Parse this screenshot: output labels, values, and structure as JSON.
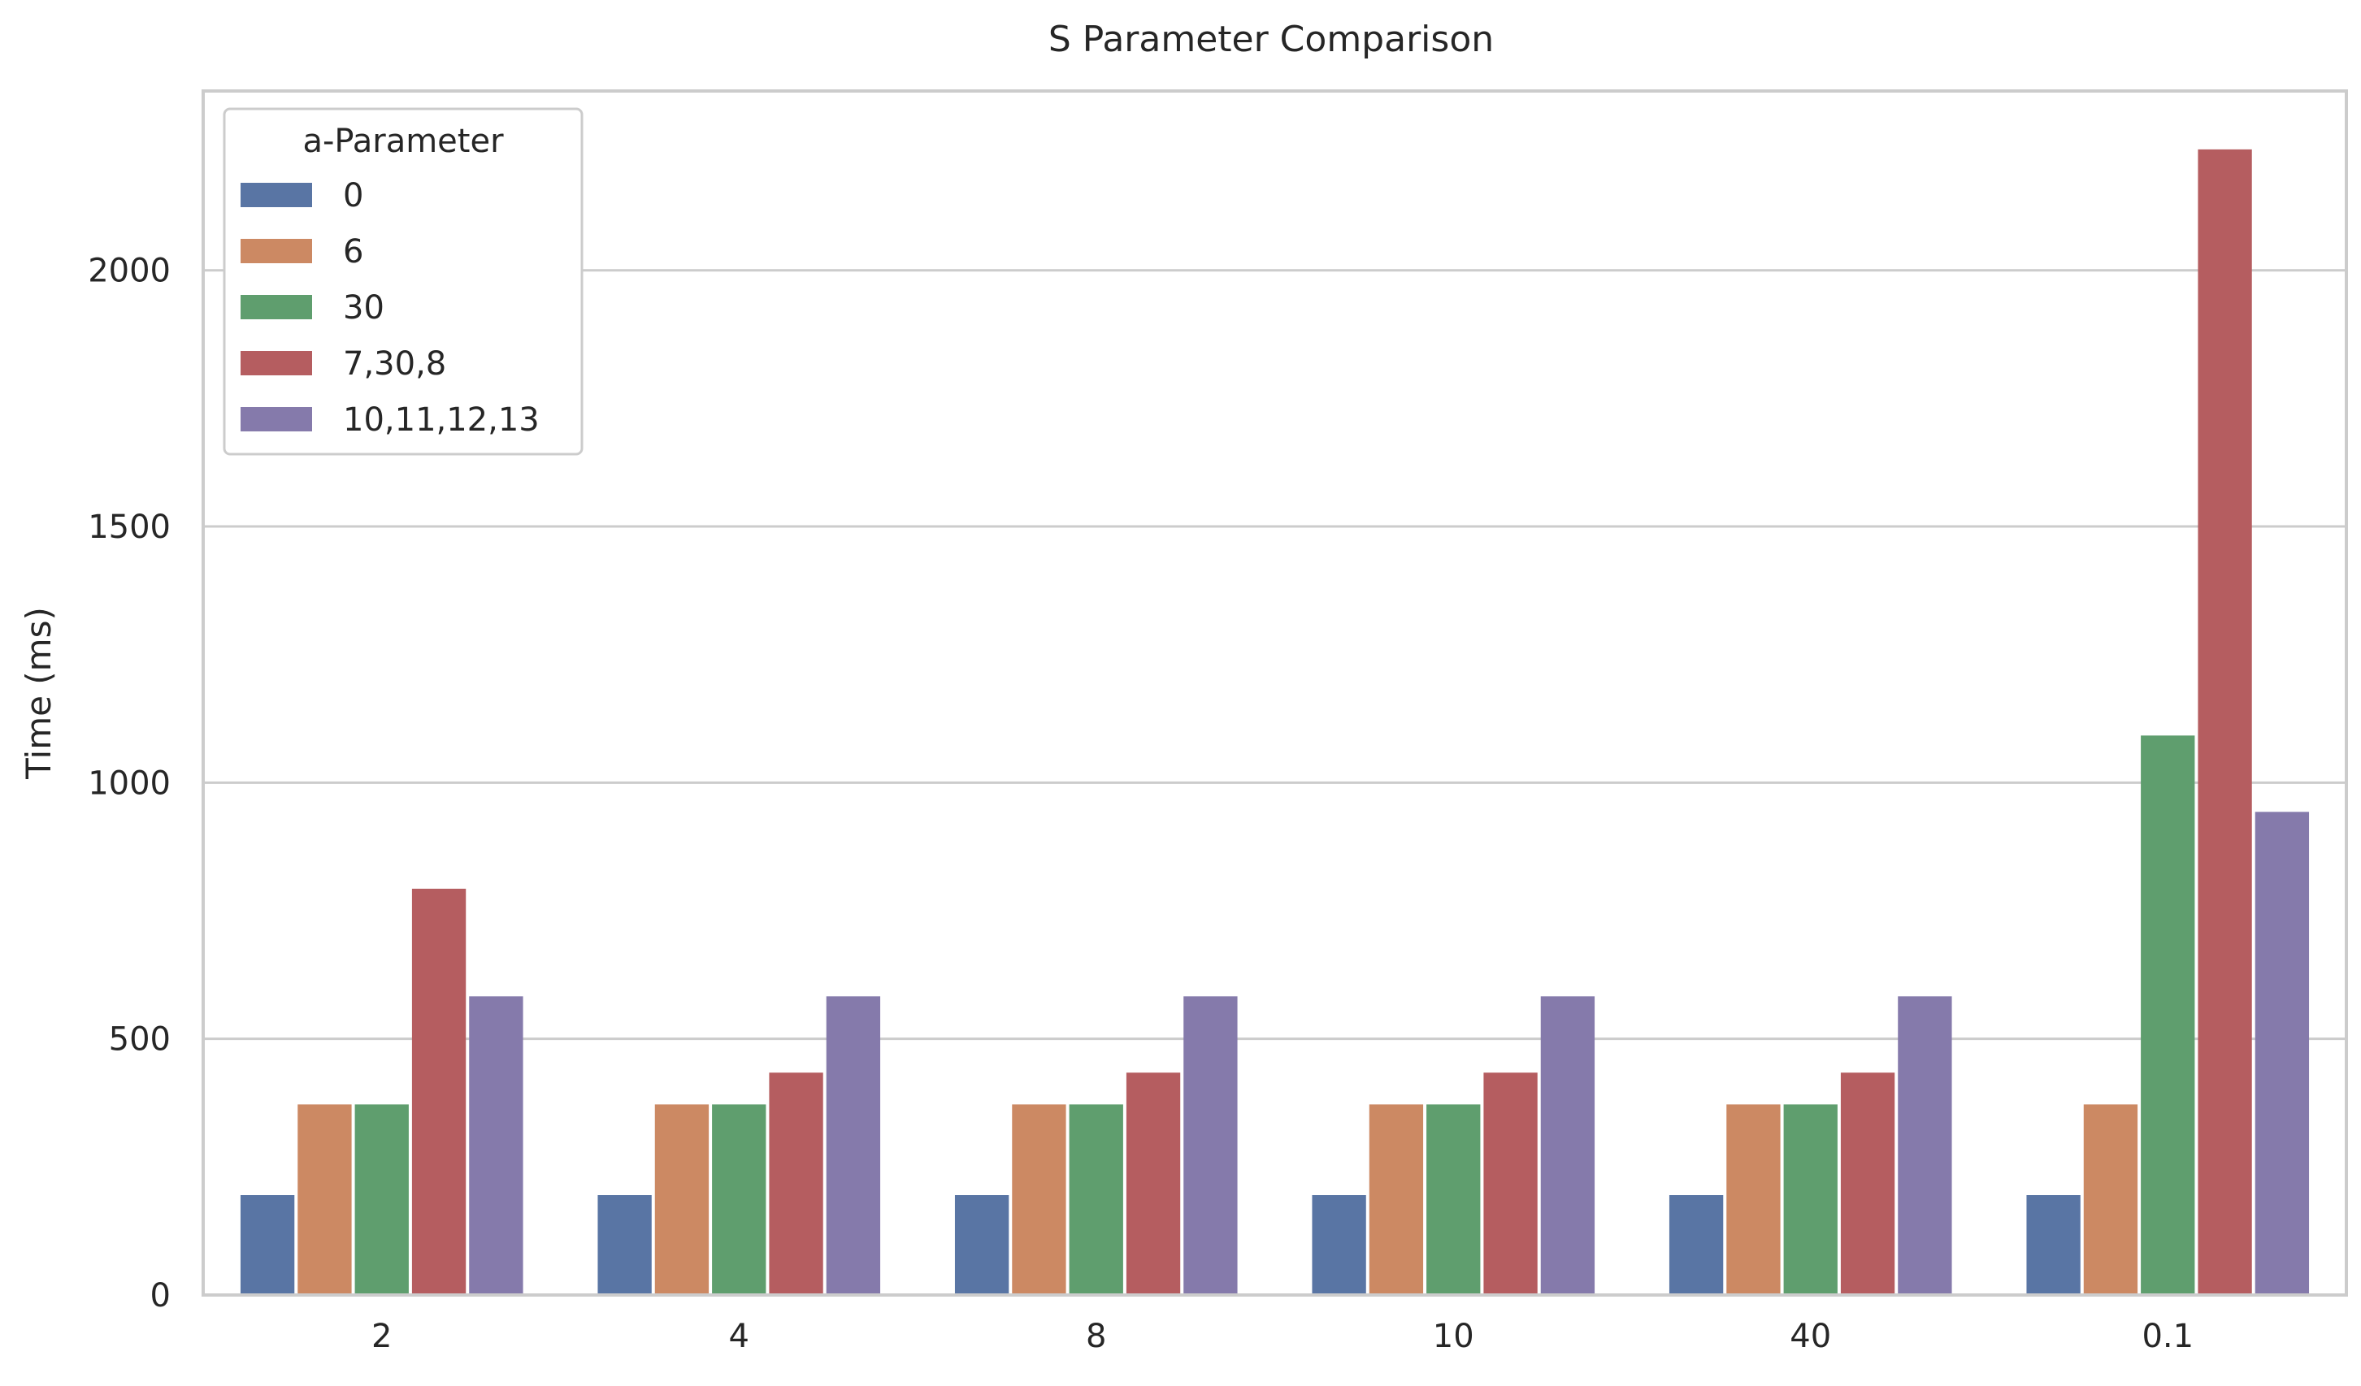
{
  "chart_data": {
    "type": "bar",
    "title": "S Parameter Comparison",
    "xlabel": "",
    "ylabel": "Time (ms)",
    "categories": [
      "2",
      "4",
      "8",
      "10",
      "40",
      "0.1"
    ],
    "ylim": [
      0,
      2350
    ],
    "yticks": [
      0,
      500,
      1000,
      1500,
      2000
    ],
    "grid": true,
    "legend": {
      "title": "a-Parameter",
      "placement": "top-left"
    },
    "series": [
      {
        "name": "0",
        "color": "#5975a4",
        "values": [
          195,
          195,
          195,
          195,
          195,
          195
        ]
      },
      {
        "name": "6",
        "color": "#cc8963",
        "values": [
          372,
          372,
          372,
          372,
          372,
          372
        ]
      },
      {
        "name": "30",
        "color": "#5f9e6e",
        "values": [
          372,
          372,
          372,
          372,
          372,
          1092
        ]
      },
      {
        "name": "7,30,8",
        "color": "#b55d60",
        "values": [
          793,
          434,
          434,
          434,
          434,
          2236
        ]
      },
      {
        "name": "10,11,12,13",
        "color": "#857aab",
        "values": [
          583,
          583,
          583,
          583,
          583,
          943
        ]
      }
    ]
  }
}
